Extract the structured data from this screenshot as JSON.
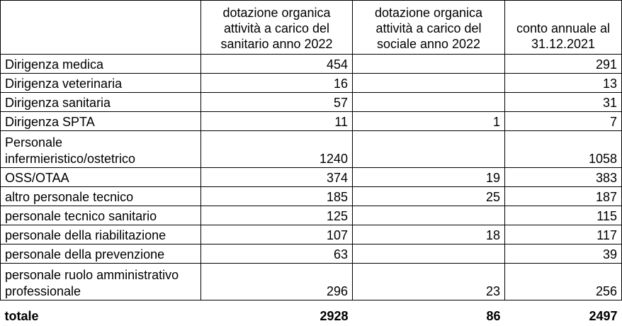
{
  "table": {
    "columns": [
      "dotazione organica attività a carico del sanitario anno 2022",
      "dotazione organica attività a carico del sociale anno 2022",
      "conto annuale al 31.12.2021"
    ],
    "rows": [
      [
        "Dirigenza medica",
        454,
        null,
        291
      ],
      [
        "Dirigenza veterinaria",
        16,
        null,
        13
      ],
      [
        "Dirigenza sanitaria",
        57,
        null,
        31
      ],
      [
        "Dirigenza SPTA",
        11,
        1,
        7
      ],
      [
        "Personale infermieristico/ostetrico",
        1240,
        null,
        1058
      ],
      [
        "OSS/OTAA",
        374,
        19,
        383
      ],
      [
        "altro personale tecnico",
        185,
        25,
        187
      ],
      [
        "personale tecnico sanitario",
        125,
        null,
        115
      ],
      [
        "personale della riabilitazione",
        107,
        18,
        117
      ],
      [
        "personale della prevenzione",
        63,
        null,
        39
      ],
      [
        "personale ruolo amministrativo professionale",
        296,
        23,
        256
      ]
    ],
    "total": [
      "totale",
      2928,
      86,
      2497
    ]
  }
}
